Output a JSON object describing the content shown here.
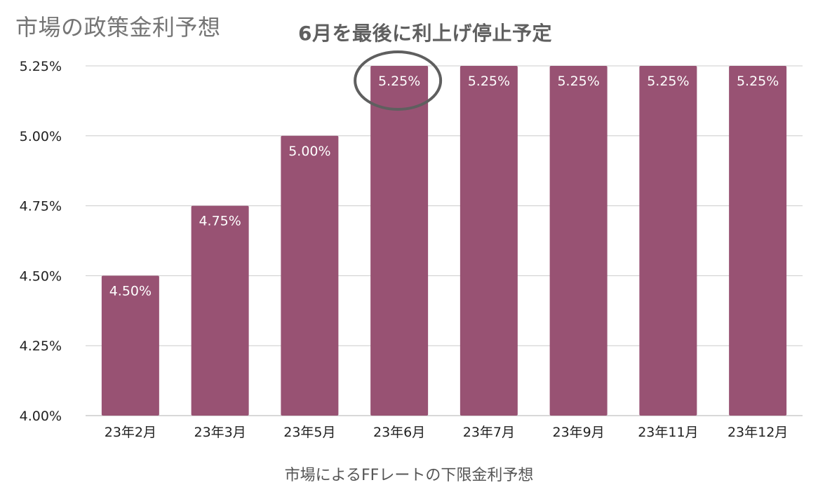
{
  "chart_data": {
    "type": "bar",
    "title": "市場の政策金利予想",
    "annotation": "6月を最後に利上げ停止予定",
    "xlabel": "市場によるFFレートの下限金利予想",
    "ylabel": "",
    "categories": [
      "23年2月",
      "23年3月",
      "23年5月",
      "23年6月",
      "23年7月",
      "23年9月",
      "23年11月",
      "23年12月"
    ],
    "values": [
      4.5,
      4.75,
      5.0,
      5.25,
      5.25,
      5.25,
      5.25,
      5.25
    ],
    "data_labels": [
      "4.50%",
      "4.75%",
      "5.00%",
      "5.25%",
      "5.25%",
      "5.25%",
      "5.25%",
      "5.25%"
    ],
    "ylim": [
      4.0,
      5.25
    ],
    "yticks": [
      4.0,
      4.25,
      4.5,
      4.75,
      5.0,
      5.25
    ],
    "ytick_labels": [
      "4.00%",
      "4.25%",
      "4.50%",
      "4.75%",
      "5.00%",
      "5.25%"
    ],
    "highlighted_category": "23年6月",
    "grid": true,
    "legend": "none",
    "colors": {
      "bar": "#985273",
      "grid": "#cccccc",
      "highlight_ellipse": "#5f5f5f",
      "data_label": "#ffffff"
    }
  }
}
